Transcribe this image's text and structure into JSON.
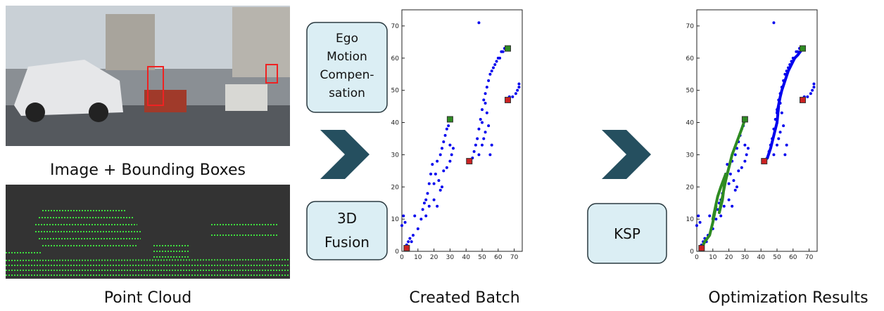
{
  "diagram": {
    "image_caption": "Image + Bounding Boxes",
    "cloud_caption": "Point Cloud",
    "box_ego": [
      "Ego",
      "Motion",
      "Compen-",
      "sation"
    ],
    "box_fusion": [
      "3D",
      "Fusion"
    ],
    "box_ksp": "KSP"
  },
  "chart_data": [
    {
      "type": "scatter",
      "title": "Created Batch",
      "xlim": [
        0,
        75
      ],
      "ylim": [
        0,
        75
      ],
      "xticks": [
        0,
        10,
        20,
        30,
        40,
        50,
        60,
        70
      ],
      "yticks": [
        0,
        10,
        20,
        30,
        40,
        50,
        60,
        70
      ],
      "series": [
        {
          "type": "scatter",
          "marker": "circle",
          "color": "#0000ee",
          "x": [
            0,
            1,
            2,
            3,
            4,
            5,
            6,
            7,
            8,
            10,
            12,
            13,
            14,
            15,
            16,
            15,
            17,
            18,
            17,
            19,
            20,
            21,
            22,
            20,
            23,
            24,
            22,
            25,
            26,
            24,
            27,
            28,
            26,
            29,
            30,
            31,
            32,
            30,
            28,
            25,
            43,
            44,
            45,
            46,
            47,
            48,
            49,
            50,
            51,
            52,
            53,
            54,
            55,
            56,
            57,
            58,
            59,
            60,
            61,
            62,
            63,
            64,
            48,
            50,
            51,
            52,
            50,
            53,
            52,
            55,
            56,
            54,
            48,
            67,
            69,
            71,
            72,
            73,
            73
          ],
          "values": [
            8,
            11,
            9,
            2,
            3,
            4,
            3,
            5,
            11,
            7,
            10,
            13,
            15,
            16,
            18,
            11,
            21,
            24,
            14,
            27,
            21,
            24,
            28,
            16,
            22,
            30,
            14,
            32,
            34,
            19,
            36,
            38,
            25,
            39,
            33,
            30,
            32,
            28,
            26,
            20,
            28,
            29,
            31,
            33,
            35,
            38,
            41,
            44,
            47,
            49,
            51,
            53,
            55,
            56,
            57,
            58,
            59,
            60,
            60,
            62,
            62,
            63,
            30,
            33,
            35,
            37,
            40,
            43,
            46,
            30,
            33,
            39,
            71,
            48,
            48,
            49,
            50,
            52,
            51
          ]
        },
        {
          "type": "scatter",
          "marker": "square",
          "color": "#cc2222",
          "x": [
            3,
            42,
            66
          ],
          "values": [
            1,
            28,
            47
          ]
        },
        {
          "type": "scatter",
          "marker": "square",
          "color": "#2e8b22",
          "x": [
            30,
            66
          ],
          "values": [
            41,
            63
          ]
        }
      ]
    },
    {
      "type": "scatter",
      "title": "Optimization Results",
      "xlim": [
        0,
        75
      ],
      "ylim": [
        0,
        75
      ],
      "xticks": [
        0,
        10,
        20,
        30,
        40,
        50,
        60,
        70
      ],
      "yticks": [
        0,
        10,
        20,
        30,
        40,
        50,
        60,
        70
      ],
      "series": [
        {
          "type": "scatter",
          "marker": "circle",
          "color": "#0000ee",
          "x": [
            0,
            1,
            2,
            3,
            4,
            5,
            6,
            7,
            8,
            10,
            12,
            13,
            14,
            15,
            16,
            15,
            17,
            18,
            17,
            19,
            20,
            21,
            22,
            20,
            23,
            24,
            22,
            25,
            26,
            24,
            27,
            28,
            26,
            29,
            30,
            31,
            32,
            30,
            28,
            25,
            43,
            44,
            45,
            46,
            47,
            48,
            49,
            50,
            51,
            52,
            53,
            54,
            55,
            56,
            57,
            58,
            59,
            60,
            61,
            62,
            63,
            64,
            48,
            50,
            51,
            52,
            50,
            53,
            52,
            55,
            56,
            54,
            48,
            67,
            69,
            71,
            72,
            73,
            73
          ],
          "values": [
            8,
            11,
            9,
            2,
            3,
            4,
            3,
            5,
            11,
            7,
            10,
            13,
            15,
            16,
            18,
            11,
            21,
            24,
            14,
            27,
            21,
            24,
            28,
            16,
            22,
            30,
            14,
            32,
            34,
            19,
            36,
            38,
            25,
            39,
            33,
            30,
            32,
            28,
            26,
            20,
            28,
            29,
            31,
            33,
            35,
            38,
            41,
            44,
            47,
            49,
            51,
            53,
            55,
            56,
            57,
            58,
            59,
            60,
            60,
            62,
            62,
            63,
            30,
            33,
            35,
            37,
            40,
            43,
            46,
            30,
            33,
            39,
            71,
            48,
            48,
            49,
            50,
            52,
            51
          ]
        },
        {
          "type": "line",
          "color": "#2e8b22",
          "x": [
            3,
            5,
            8,
            10,
            12,
            10,
            13,
            15,
            18,
            16,
            14,
            18,
            20,
            22,
            25,
            28,
            30
          ],
          "values": [
            1,
            3,
            5,
            9,
            14,
            10,
            17,
            20,
            24,
            16,
            12,
            22,
            26,
            30,
            34,
            38,
            41
          ]
        },
        {
          "type": "line",
          "color": "#0000ee",
          "x": [
            42,
            44,
            46,
            48,
            50,
            51,
            50,
            52,
            53,
            55,
            57,
            59,
            61,
            63,
            66
          ],
          "values": [
            28,
            29,
            32,
            36,
            40,
            45,
            43,
            48,
            50,
            53,
            56,
            58,
            60,
            61,
            63
          ]
        },
        {
          "type": "scatter",
          "marker": "square",
          "color": "#cc2222",
          "x": [
            3,
            42,
            66
          ],
          "values": [
            1,
            28,
            47
          ]
        },
        {
          "type": "scatter",
          "marker": "square",
          "color": "#2e8b22",
          "x": [
            30,
            66
          ],
          "values": [
            41,
            63
          ]
        }
      ]
    }
  ]
}
